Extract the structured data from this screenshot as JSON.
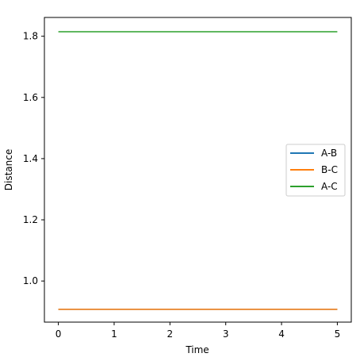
{
  "chart_data": {
    "type": "line",
    "title": "",
    "xlabel": "Time",
    "ylabel": "Distance",
    "xlim": [
      -0.25,
      5.25
    ],
    "ylim": [
      0.8656,
      1.8614
    ],
    "xticks": [
      0,
      1,
      2,
      3,
      4,
      5
    ],
    "yticks": [
      1.0,
      1.2,
      1.4,
      1.6,
      1.8
    ],
    "xtick_labels": [
      "0",
      "1",
      "2",
      "3",
      "4",
      "5"
    ],
    "ytick_labels": [
      "1.0",
      "1.2",
      "1.4",
      "1.6",
      "1.8"
    ],
    "grid": false,
    "legend_position": "center-right",
    "x": [
      0,
      1,
      2,
      3,
      4,
      5
    ],
    "series": [
      {
        "name": "A-B",
        "color": "#1f77b4",
        "values": [
          0.9074,
          0.9074,
          0.9074,
          0.9074,
          0.9074,
          0.9074
        ]
      },
      {
        "name": "B-C",
        "color": "#ff7f0e",
        "values": [
          0.9074,
          0.9074,
          0.9074,
          0.9074,
          0.9074,
          0.9074
        ]
      },
      {
        "name": "A-C",
        "color": "#2ca02c",
        "values": [
          1.8148,
          1.8148,
          1.8148,
          1.8148,
          1.8148,
          1.8148
        ]
      }
    ]
  }
}
